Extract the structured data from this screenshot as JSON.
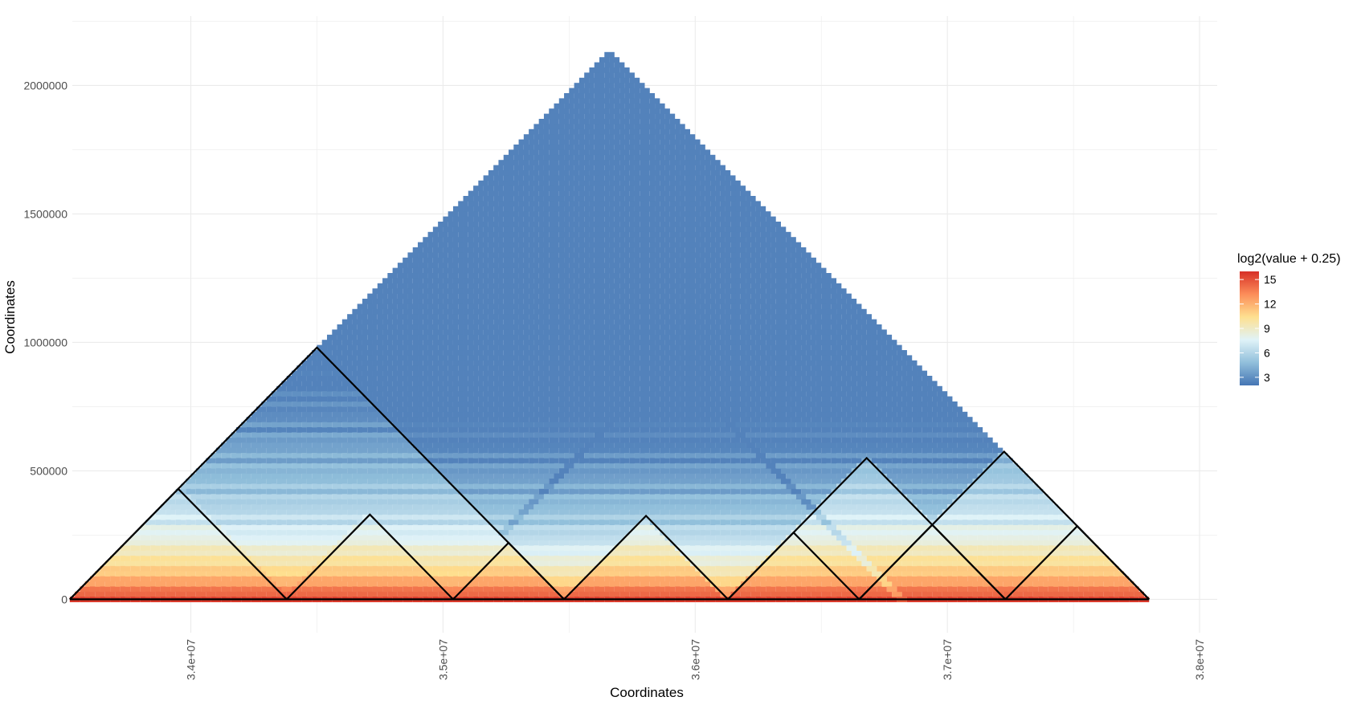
{
  "chart_data": {
    "type": "heatmap",
    "title": "",
    "xlabel": "Coordinates",
    "ylabel": "Coordinates",
    "xlim": [
      33530000,
      38070000
    ],
    "ylim": [
      -130000,
      2270000
    ],
    "x_ticks": [
      {
        "value": 34000000,
        "label": "3.4e+07"
      },
      {
        "value": 35000000,
        "label": "3.5e+07"
      },
      {
        "value": 36000000,
        "label": "3.6e+07"
      },
      {
        "value": 37000000,
        "label": "3.7e+07"
      },
      {
        "value": 38000000,
        "label": "3.8e+07"
      }
    ],
    "y_ticks": [
      {
        "value": 0,
        "label": "0"
      },
      {
        "value": 500000,
        "label": "500000"
      },
      {
        "value": 1000000,
        "label": "1000000"
      },
      {
        "value": 1500000,
        "label": "1500000"
      },
      {
        "value": 2000000,
        "label": "2000000"
      }
    ],
    "grid": true,
    "heatmap": {
      "region_start": 33520000,
      "region_end": 37800000,
      "bin_size": 40000,
      "value_formula": "log2(value + 0.25)",
      "value_range": [
        2,
        16
      ]
    },
    "legend": {
      "title": "log2(value + 0.25)",
      "position": "right",
      "ticks": [
        15,
        12,
        9,
        6,
        3
      ],
      "range": [
        2,
        16
      ],
      "colors": [
        "#4575b4",
        "#91bfdb",
        "#e0f3f8",
        "#fee090",
        "#fc8d59",
        "#d73027"
      ]
    },
    "domains": [
      {
        "start": 33520000,
        "end": 34380000
      },
      {
        "start": 34380000,
        "end": 35040000
      },
      {
        "start": 35040000,
        "end": 35480000
      },
      {
        "start": 35480000,
        "end": 36130000
      },
      {
        "start": 36130000,
        "end": 36650000
      },
      {
        "start": 36650000,
        "end": 37230000
      },
      {
        "start": 37230000,
        "end": 37800000
      },
      {
        "start": 33520000,
        "end": 35480000
      },
      {
        "start": 36130000,
        "end": 37230000
      },
      {
        "start": 36650000,
        "end": 37800000
      }
    ]
  }
}
